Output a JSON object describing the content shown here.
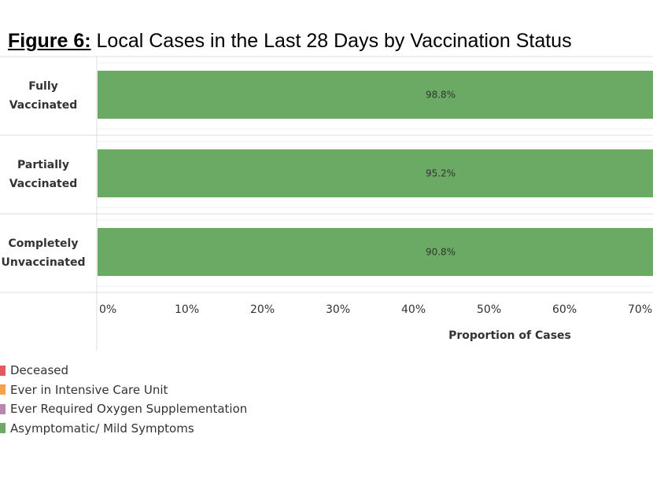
{
  "chart_data": {
    "type": "bar",
    "orientation": "horizontal",
    "stacked": true,
    "title_prefix": "Figure 6:",
    "title": "Local Cases in the Last 28 Days by Vaccination Status",
    "xlabel": "Proportion of Cases",
    "categories": [
      [
        "Fully",
        "Vaccinated"
      ],
      [
        "Partially",
        "Vaccinated"
      ],
      [
        "Completely",
        "Unvaccinated"
      ]
    ],
    "series": [
      {
        "name": "Asymptomatic/ Mild Symptoms",
        "color": "#6aaa64",
        "values": [
          98.8,
          95.2,
          90.8
        ]
      }
    ],
    "value_labels": [
      "98.8%",
      "95.2%",
      "90.8%"
    ],
    "xticks": [
      "0%",
      "10%",
      "20%",
      "30%",
      "40%",
      "50%",
      "60%",
      "70%"
    ],
    "xlim": [
      0,
      70
    ],
    "legend": [
      {
        "name": "Deceased",
        "color": "#e05a5f"
      },
      {
        "name": "Ever in Intensive Care Unit",
        "color": "#f5a04a"
      },
      {
        "name": "Ever Required Oxygen Supplementation",
        "color": "#b986ad"
      },
      {
        "name": "Asymptomatic/ Mild Symptoms",
        "color": "#6aaa64"
      }
    ],
    "legend_position": "bottom-left"
  }
}
